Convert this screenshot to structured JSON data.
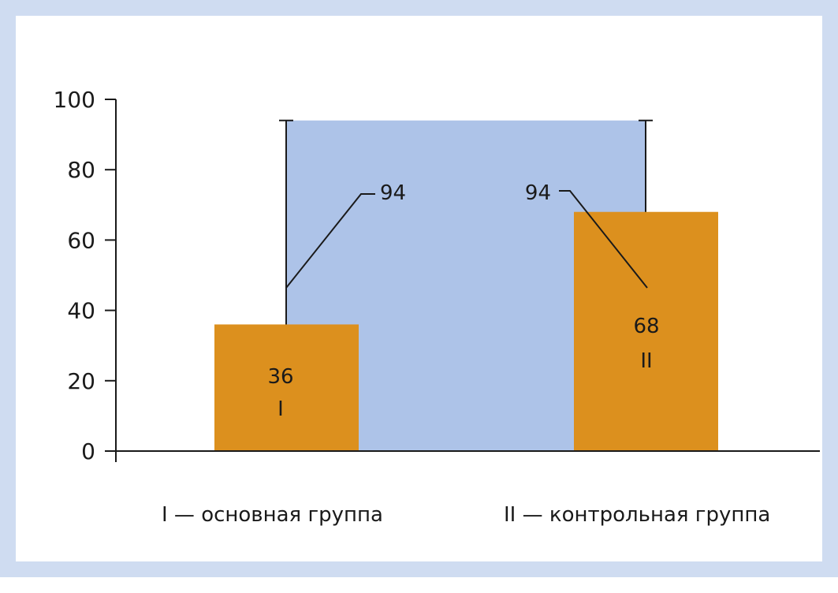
{
  "colors": {
    "frame": "#cfdcf1",
    "background_bar": "#adc3e8",
    "bar": "#dc901e",
    "axis": "#1a1a1a"
  },
  "chart_data": {
    "type": "bar",
    "title": "",
    "xlabel": "",
    "ylabel": "",
    "ylim": [
      0,
      100
    ],
    "yticks": [
      0,
      20,
      40,
      60,
      80,
      100
    ],
    "yticks_labels": [
      "0",
      "20",
      "40",
      "60",
      "80",
      "100"
    ],
    "categories": [
      "I",
      "II"
    ],
    "series": [
      {
        "values": [
          36,
          68
        ],
        "value_labels": [
          "36",
          "68"
        ],
        "category_labels": [
          "I",
          "II"
        ]
      }
    ],
    "background_range": {
      "value": 94,
      "labels": [
        "94",
        "94"
      ]
    },
    "legend": [
      "I — основная группа",
      "II — контрольная группа"
    ],
    "grid": false
  }
}
